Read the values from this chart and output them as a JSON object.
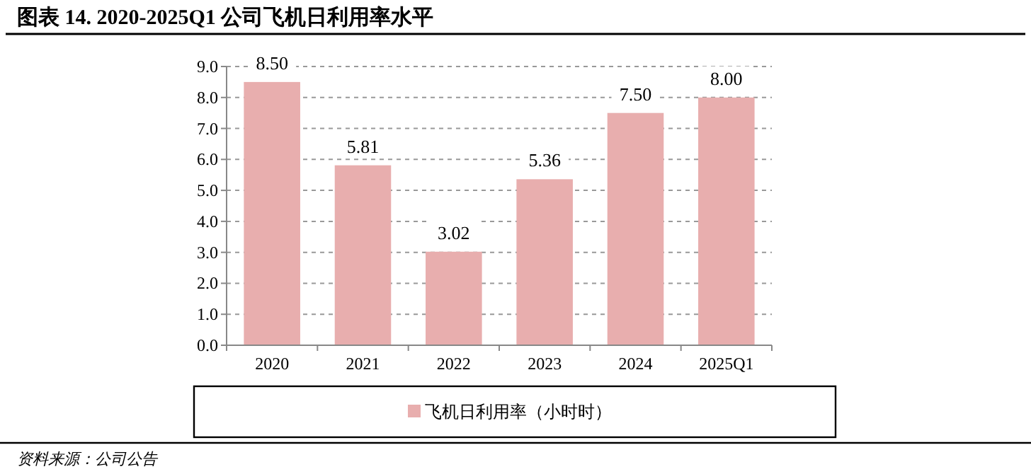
{
  "chart_data": {
    "type": "bar",
    "title": "图表 14. 2020-2025Q1 公司飞机日利用率水平",
    "categories": [
      "2020",
      "2021",
      "2022",
      "2023",
      "2024",
      "2025Q1"
    ],
    "series": [
      {
        "name": "飞机日利用率（小时时）",
        "color": "#e8aeae",
        "values": [
          8.5,
          5.81,
          3.02,
          5.36,
          7.5,
          8.0
        ]
      }
    ],
    "value_labels": [
      "8.50",
      "5.81",
      "3.02",
      "5.36",
      "7.50",
      "8.00"
    ],
    "ylim": [
      0,
      9
    ],
    "yticks": [
      {
        "value": 0,
        "label": "0.0"
      },
      {
        "value": 1,
        "label": "1.0"
      },
      {
        "value": 2,
        "label": "2.0"
      },
      {
        "value": 3,
        "label": "3.0"
      },
      {
        "value": 4,
        "label": "4.0"
      },
      {
        "value": 5,
        "label": "5.0"
      },
      {
        "value": 6,
        "label": "6.0"
      },
      {
        "value": 7,
        "label": "7.0"
      },
      {
        "value": 8,
        "label": "8.0"
      },
      {
        "value": 9,
        "label": "9.0"
      }
    ],
    "grid": "y",
    "legend": "bottom",
    "annotations": [
      "资料来源：公司公告"
    ]
  }
}
